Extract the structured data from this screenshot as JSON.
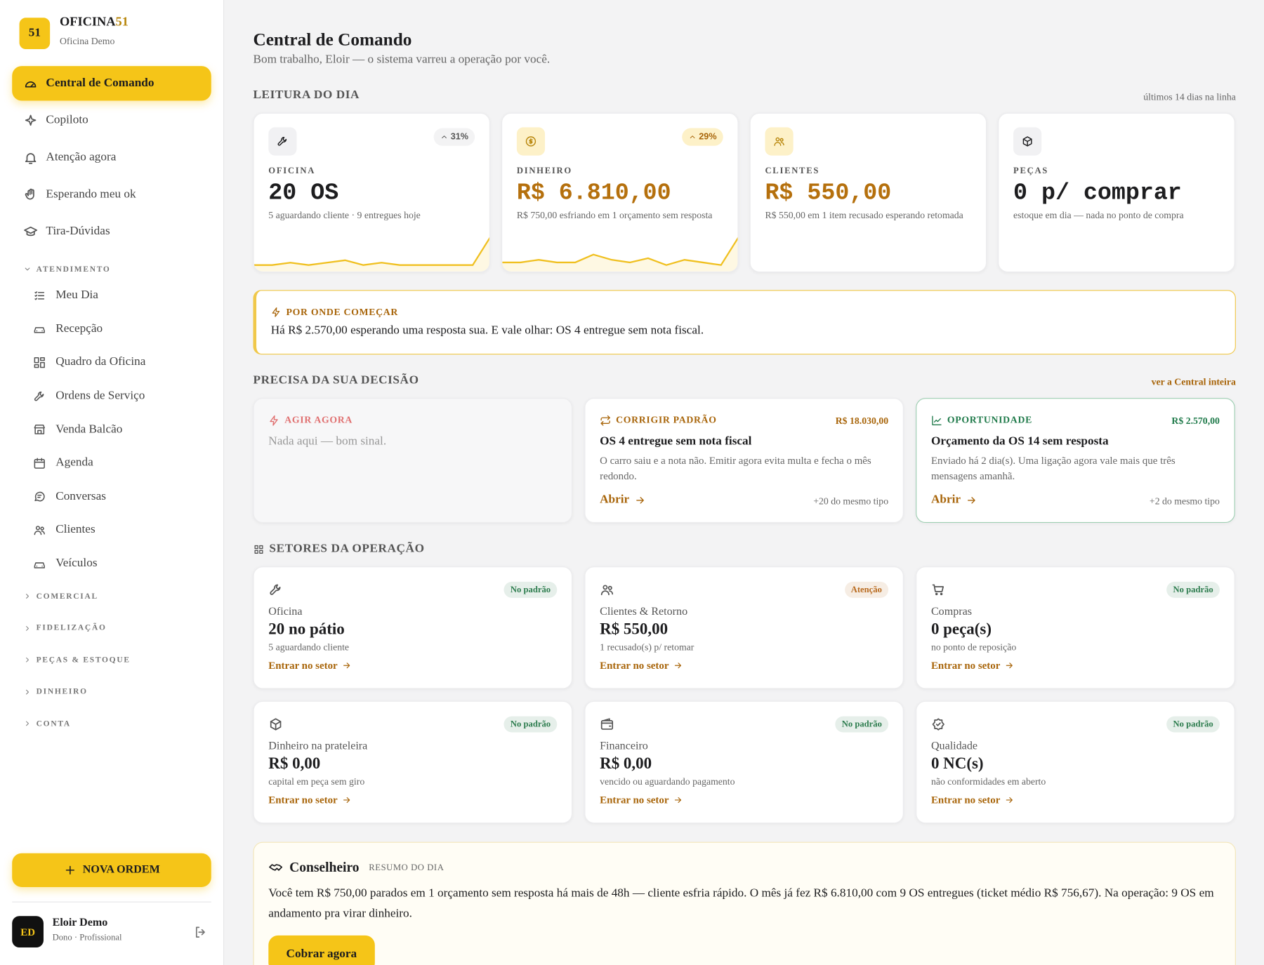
{
  "brand": {
    "logo": "51",
    "name": "OFICINA",
    "name_accent": "51",
    "subtitle": "Oficina Demo"
  },
  "nav": {
    "main": [
      "Central de Comando",
      "Copiloto",
      "Atenção agora",
      "Esperando meu ok",
      "Tira-Dúvidas"
    ],
    "sections": [
      {
        "title": "ATENDIMENTO",
        "items": [
          "Meu Dia",
          "Recepção",
          "Quadro da Oficina",
          "Ordens de Serviço",
          "Venda Balcão",
          "Agenda",
          "Conversas",
          "Clientes",
          "Veículos"
        ]
      },
      {
        "title": "COMERCIAL"
      },
      {
        "title": "FIDELIZAÇÃO"
      },
      {
        "title": "PEÇAS & ESTOQUE"
      },
      {
        "title": "DINHEIRO"
      },
      {
        "title": "CONTA"
      }
    ]
  },
  "new_order": "NOVA ORDEM",
  "user": {
    "initials": "ED",
    "name": "Eloir Demo",
    "role": "Dono · Profissional"
  },
  "header": {
    "title": "Central de Comando",
    "subtitle": "Bom trabalho, Eloir — o sistema varreu a operação por você."
  },
  "reading": {
    "title": "LEITURA DO DIA",
    "note": "últimos 14 dias na linha",
    "cards": [
      {
        "label": "OFICINA",
        "value": "20 OS",
        "note": "5 aguardando cliente · 9 entregues hoje",
        "change": "31%",
        "trend": [
          1,
          1,
          1.5,
          1,
          1.5,
          2,
          1,
          1.5,
          1,
          1,
          1,
          1,
          1,
          7
        ]
      },
      {
        "label": "DINHEIRO",
        "value": "R$ 6.810,00",
        "note": "R$ 750,00 esfriando em 1 orçamento sem resposta",
        "change": "29%",
        "trend": [
          1,
          1,
          1.5,
          1,
          1,
          2.5,
          1.5,
          1,
          1.8,
          0.5,
          1.5,
          1,
          0.5,
          6
        ]
      },
      {
        "label": "CLIENTES",
        "value": "R$ 550,00",
        "note": "R$ 550,00 em 1 item recusado esperando retomada"
      },
      {
        "label": "PEÇAS",
        "value": "0 p/ comprar",
        "note": "estoque em dia — nada no ponto de compra"
      }
    ]
  },
  "start": {
    "title": "POR ONDE COMEÇAR",
    "text": "Há R$ 2.570,00 esperando uma resposta sua. E vale olhar: OS 4 entregue sem nota fiscal."
  },
  "decisions": {
    "title": "PRECISA DA SUA DECISÃO",
    "link": "ver a Central inteira",
    "cards": [
      {
        "kind": "AGIR AGORA",
        "color": "#e07070",
        "empty": "Nada aqui — bom sinal."
      },
      {
        "kind": "CORRIGIR PADRÃO",
        "color": "#a8650a",
        "amount": "R$ 18.030,00",
        "title": "OS 4 entregue sem nota fiscal",
        "text": "O carro saiu e a nota não. Emitir agora evita multa e fecha o mês redondo.",
        "action": "Abrir",
        "more": "+20 do mesmo tipo"
      },
      {
        "kind": "OPORTUNIDADE",
        "color": "#1f7a4a",
        "amount": "R$ 2.570,00",
        "title": "Orçamento da OS 14 sem resposta",
        "text": "Enviado há 2 dia(s). Uma ligação agora vale mais que três mensagens amanhã.",
        "action": "Abrir",
        "more": "+2 do mesmo tipo"
      }
    ]
  },
  "sectors": {
    "title": "SETORES DA OPERAÇÃO",
    "cards": [
      {
        "status": "No padrão",
        "status_color": "#2e7d4f",
        "name": "Oficina",
        "value": "20 no pátio",
        "note": "5 aguardando cliente",
        "link": "Entrar no setor"
      },
      {
        "status": "Atenção",
        "status_color": "#b86a1e",
        "name": "Clientes & Retorno",
        "value": "R$ 550,00",
        "note": "1 recusado(s) p/ retomar",
        "link": "Entrar no setor"
      },
      {
        "status": "No padrão",
        "status_color": "#2e7d4f",
        "name": "Compras",
        "value": "0 peça(s)",
        "note": "no ponto de reposição",
        "link": "Entrar no setor"
      },
      {
        "status": "No padrão",
        "status_color": "#2e7d4f",
        "name": "Dinheiro na prateleira",
        "value": "R$ 0,00",
        "note": "capital em peça sem giro",
        "link": "Entrar no setor"
      },
      {
        "status": "No padrão",
        "status_color": "#2e7d4f",
        "name": "Financeiro",
        "value": "R$ 0,00",
        "note": "vencido ou aguardando pagamento",
        "link": "Entrar no setor"
      },
      {
        "status": "No padrão",
        "status_color": "#2e7d4f",
        "name": "Qualidade",
        "value": "0 NC(s)",
        "note": "não conformidades em aberto",
        "link": "Entrar no setor"
      }
    ]
  },
  "advisor": {
    "title": "Conselheiro",
    "tag": "RESUMO DO DIA",
    "text": "Você tem R$ 750,00 parados em 1 orçamento sem resposta há mais de 48h — cliente esfria rápido. O mês já fez R$ 6.810,00 com 9 OS entregues (ticket médio R$ 756,67). Na operação: 9 OS em andamento pra virar dinheiro.",
    "action": "Cobrar agora"
  }
}
